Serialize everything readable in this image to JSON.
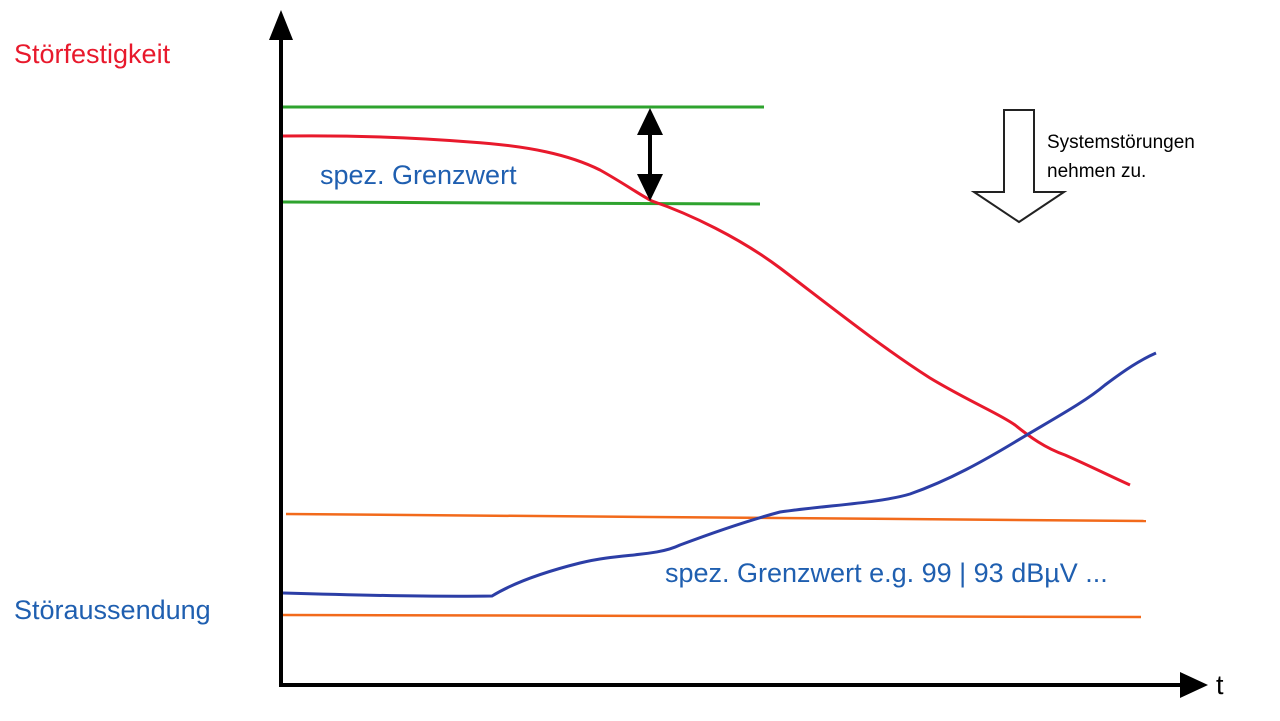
{
  "labels": {
    "immunity": "Störfestigkeit",
    "emission": "Störaussendung",
    "upper_limit": "spez. Grenzwert",
    "lower_limit": "spez. Grenzwert e.g. 99 | 93 dBµV ...",
    "note_line1": "Systemstörungen",
    "note_line2": "nehmen zu.",
    "t_axis": "t"
  },
  "colors": {
    "immunity": "#e8192c",
    "emission": "#2c3ea6",
    "limit_green": "#2ea32e",
    "limit_orange": "#f26a1b",
    "axis": "#000000",
    "label_blue": "#1f5fb0"
  }
}
